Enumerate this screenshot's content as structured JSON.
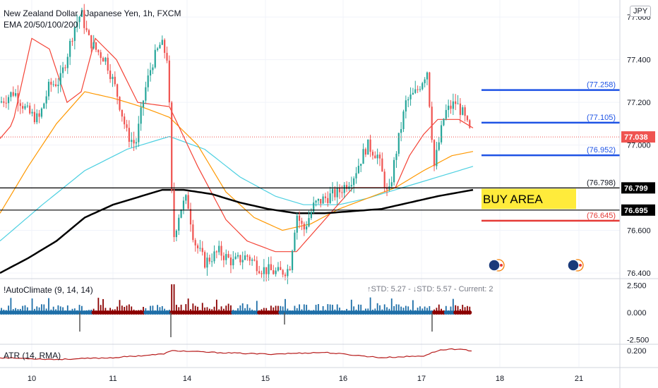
{
  "header": {
    "title": "New Zealand Dollar / Japanese Yen, 1h, FXCM",
    "indicator": "EMA 20/50/100/200",
    "currency_button": "JPY"
  },
  "panes": {
    "autoclimate_label": "!AutoClimate (9, 14, 14)",
    "autoclimate_stats": "↑STD: 5.27 - ↓STD: 5.57 - Current: 2",
    "atr_label": "ATR (14, RMA)"
  },
  "colors": {
    "up": "#26a69a",
    "down": "#ef5350",
    "ema20": "#f44336",
    "ema50": "#ff9800",
    "ema100": "#4dd0e1",
    "ema200": "#000000",
    "blue_level": "#1e53e5",
    "red_level": "#e53935",
    "buy_area": "#ffeb3b",
    "climate_blue": "#1e6fa8",
    "climate_red": "#8b0000",
    "atr": "#b71c1c"
  },
  "chart_data": {
    "type": "candlestick",
    "y_axis": {
      "ticks": [
        "77.600",
        "77.400",
        "77.200",
        "77.000",
        "76.600",
        "76.400"
      ],
      "tick_values": [
        77.6,
        77.4,
        77.2,
        77.0,
        76.6,
        76.4
      ],
      "range": [
        76.39,
        77.68
      ]
    },
    "x_axis": {
      "ticks": [
        "10",
        "11",
        "14",
        "15",
        "16",
        "17",
        "18",
        "21"
      ]
    },
    "current_price": 77.038,
    "current_price_label": "77.038",
    "horizontal_levels": [
      {
        "price": 77.258,
        "label": "(77.258)",
        "color": "blue"
      },
      {
        "price": 77.105,
        "label": "(77.105)",
        "color": "blue"
      },
      {
        "price": 76.952,
        "label": "(76.952)",
        "color": "blue"
      },
      {
        "price": 76.798,
        "label": "(76.798)",
        "color": "black"
      },
      {
        "price": 76.645,
        "label": "(76.645)",
        "color": "red"
      }
    ],
    "black_lines": [
      {
        "price": 76.799,
        "label": "76.799"
      },
      {
        "price": 76.695,
        "label": "76.695"
      }
    ],
    "zone": {
      "label": "BUY AREA",
      "top": 76.795,
      "bottom": 76.7
    },
    "ema_anchor_points": {
      "ema20": [
        [
          0,
          77.03
        ],
        [
          18,
          77.1
        ],
        [
          45,
          77.5
        ],
        [
          70,
          77.45
        ],
        [
          95,
          77.2
        ],
        [
          115,
          77.25
        ],
        [
          135,
          77.5
        ],
        [
          165,
          77.4
        ],
        [
          195,
          77.2
        ],
        [
          240,
          77.18
        ],
        [
          280,
          76.9
        ],
        [
          320,
          76.65
        ],
        [
          350,
          76.55
        ],
        [
          390,
          76.5
        ],
        [
          420,
          76.5
        ],
        [
          460,
          76.65
        ],
        [
          500,
          76.8
        ],
        [
          540,
          76.8
        ],
        [
          560,
          76.8
        ],
        [
          580,
          76.95
        ],
        [
          600,
          77.05
        ],
        [
          620,
          77.12
        ],
        [
          650,
          77.12
        ],
        [
          670,
          77.08
        ]
      ],
      "ema50": [
        [
          0,
          76.68
        ],
        [
          40,
          76.9
        ],
        [
          80,
          77.1
        ],
        [
          120,
          77.25
        ],
        [
          160,
          77.22
        ],
        [
          200,
          77.18
        ],
        [
          240,
          77.13
        ],
        [
          280,
          77.0
        ],
        [
          320,
          76.78
        ],
        [
          360,
          76.66
        ],
        [
          400,
          76.6
        ],
        [
          440,
          76.63
        ],
        [
          480,
          76.7
        ],
        [
          520,
          76.75
        ],
        [
          560,
          76.8
        ],
        [
          600,
          76.88
        ],
        [
          640,
          76.95
        ],
        [
          670,
          76.97
        ]
      ],
      "ema100": [
        [
          0,
          76.55
        ],
        [
          60,
          76.72
        ],
        [
          120,
          76.88
        ],
        [
          180,
          76.98
        ],
        [
          240,
          77.04
        ],
        [
          290,
          76.98
        ],
        [
          340,
          76.85
        ],
        [
          390,
          76.76
        ],
        [
          430,
          76.72
        ],
        [
          480,
          76.72
        ],
        [
          520,
          76.75
        ],
        [
          570,
          76.8
        ],
        [
          620,
          76.85
        ],
        [
          670,
          76.9
        ]
      ],
      "ema200": [
        [
          0,
          76.4
        ],
        [
          40,
          76.47
        ],
        [
          80,
          76.55
        ],
        [
          120,
          76.66
        ],
        [
          160,
          76.72
        ],
        [
          200,
          76.76
        ],
        [
          230,
          76.79
        ],
        [
          260,
          76.79
        ],
        [
          300,
          76.77
        ],
        [
          340,
          76.73
        ],
        [
          380,
          76.7
        ],
        [
          420,
          76.68
        ],
        [
          460,
          76.68
        ],
        [
          500,
          76.69
        ],
        [
          540,
          76.7
        ],
        [
          580,
          76.73
        ],
        [
          620,
          76.76
        ],
        [
          670,
          76.79
        ]
      ]
    },
    "candle_anchor_points": [
      [
        0,
        77.2
      ],
      [
        20,
        77.25
      ],
      [
        40,
        77.15
      ],
      [
        55,
        77.12
      ],
      [
        70,
        77.28
      ],
      [
        85,
        77.3
      ],
      [
        95,
        77.42
      ],
      [
        105,
        77.55
      ],
      [
        115,
        77.62
      ],
      [
        125,
        77.5
      ],
      [
        135,
        77.45
      ],
      [
        150,
        77.4
      ],
      [
        165,
        77.25
      ],
      [
        180,
        77.05
      ],
      [
        192,
        77.0
      ],
      [
        205,
        77.25
      ],
      [
        215,
        77.38
      ],
      [
        228,
        77.48
      ],
      [
        238,
        77.4
      ],
      [
        245,
        76.55
      ],
      [
        255,
        76.7
      ],
      [
        265,
        76.75
      ],
      [
        275,
        76.55
      ],
      [
        290,
        76.45
      ],
      [
        310,
        76.5
      ],
      [
        330,
        76.45
      ],
      [
        350,
        76.48
      ],
      [
        370,
        76.42
      ],
      [
        395,
        76.4
      ],
      [
        410,
        76.42
      ],
      [
        420,
        76.68
      ],
      [
        430,
        76.6
      ],
      [
        445,
        76.72
      ],
      [
        460,
        76.75
      ],
      [
        480,
        76.78
      ],
      [
        500,
        76.85
      ],
      [
        520,
        77.0
      ],
      [
        535,
        76.95
      ],
      [
        550,
        76.75
      ],
      [
        560,
        76.95
      ],
      [
        575,
        77.2
      ],
      [
        590,
        77.25
      ],
      [
        605,
        77.35
      ],
      [
        615,
        76.9
      ],
      [
        630,
        77.15
      ],
      [
        645,
        77.2
      ],
      [
        655,
        77.15
      ],
      [
        668,
        77.04
      ]
    ],
    "autoclimate": {
      "y_ticks": [
        "2.500",
        "0.000",
        "-2.500"
      ],
      "y_values": [
        2.5,
        0.0,
        -2.5
      ]
    },
    "atr": {
      "y_ticks": [
        "0.200"
      ],
      "y_values": [
        0.2
      ]
    }
  }
}
